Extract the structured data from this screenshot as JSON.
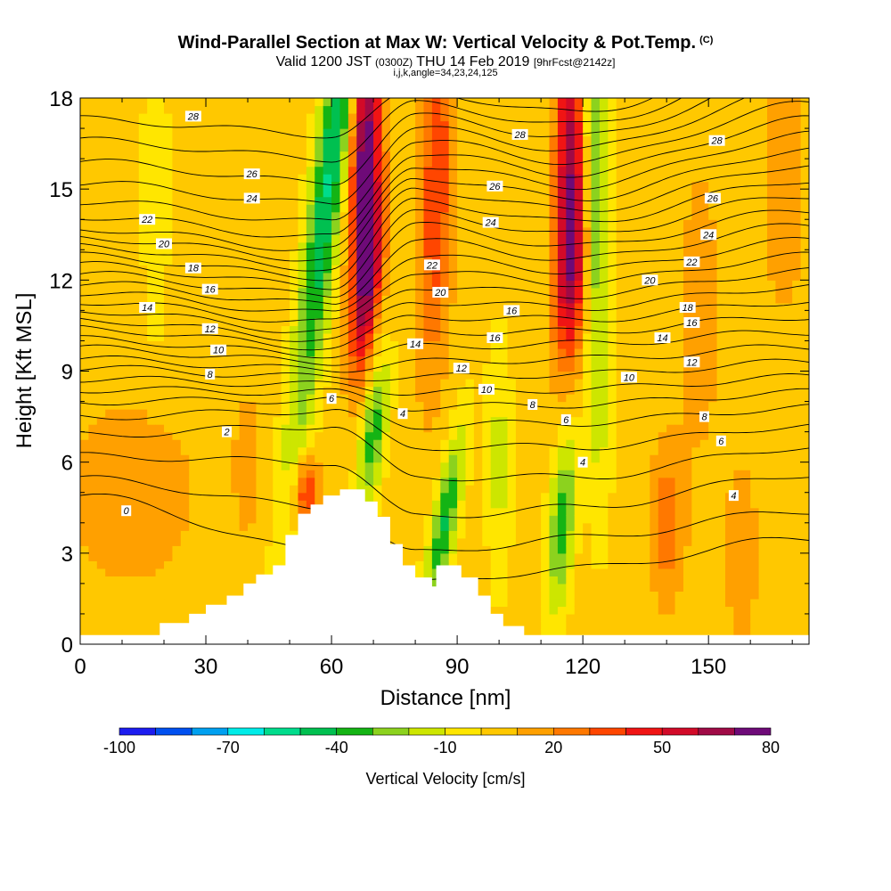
{
  "titles": {
    "main": "Wind-Parallel Section at Max W: Vertical Velocity & Pot.Temp.",
    "main_mark": "(C)",
    "valid_prefix": "Valid 1200 JST",
    "valid_z": "(0300Z)",
    "valid_date": "THU 14 Feb 2019",
    "valid_fcst": "[9hrFcst@2142z]",
    "indices": "i,j,k,angle=34,23,24,125"
  },
  "colors": {
    "background_fill": "#ffe600",
    "contour_line": "#000000",
    "terrain": "#ffffff"
  },
  "chart_data": {
    "type": "heatmap",
    "xlabel": "Distance [nm]",
    "ylabel": "Height [Kft MSL]",
    "xlim": [
      0,
      174
    ],
    "ylim": [
      0,
      18
    ],
    "x_ticks": [
      0,
      30,
      60,
      90,
      120,
      150
    ],
    "y_ticks": [
      0,
      3,
      6,
      9,
      12,
      15,
      18
    ],
    "colorbar": {
      "label": "Vertical Velocity [cm/s]",
      "levels": [
        -100,
        -90,
        -80,
        -70,
        -60,
        -50,
        -40,
        -30,
        -20,
        -10,
        0,
        10,
        20,
        30,
        40,
        50,
        60,
        70,
        80
      ],
      "tick_labels": [
        "-100",
        "-70",
        "-40",
        "-10",
        "20",
        "50",
        "80"
      ],
      "tick_values": [
        -100,
        -70,
        -40,
        -10,
        20,
        50,
        80
      ],
      "colors": [
        "#1c1cf0",
        "#0050f0",
        "#00a0f0",
        "#00ece8",
        "#00dc8c",
        "#00c050",
        "#14b414",
        "#8cd21e",
        "#cde600",
        "#ffe600",
        "#ffc800",
        "#ffa000",
        "#ff7800",
        "#ff4600",
        "#f01414",
        "#d20a28",
        "#a00a46",
        "#6e0a78"
      ]
    },
    "terrain_profile": [
      [
        0,
        0.3
      ],
      [
        19,
        0.3
      ],
      [
        19,
        0.7
      ],
      [
        26,
        0.7
      ],
      [
        26,
        1.0
      ],
      [
        30,
        1.0
      ],
      [
        30,
        1.3
      ],
      [
        35,
        1.3
      ],
      [
        35,
        1.6
      ],
      [
        39,
        1.6
      ],
      [
        39,
        2.0
      ],
      [
        42,
        2.0
      ],
      [
        42,
        2.3
      ],
      [
        46,
        2.3
      ],
      [
        46,
        2.6
      ],
      [
        49,
        2.6
      ],
      [
        49,
        3.6
      ],
      [
        52,
        3.6
      ],
      [
        52,
        4.3
      ],
      [
        55,
        4.3
      ],
      [
        55,
        4.6
      ],
      [
        58,
        4.6
      ],
      [
        58,
        4.9
      ],
      [
        62,
        4.9
      ],
      [
        62,
        5.1
      ],
      [
        68,
        5.1
      ],
      [
        68,
        4.7
      ],
      [
        71,
        4.7
      ],
      [
        71,
        4.2
      ],
      [
        74,
        4.2
      ],
      [
        74,
        3.3
      ],
      [
        77,
        3.3
      ],
      [
        77,
        2.6
      ],
      [
        80,
        2.6
      ],
      [
        80,
        2.2
      ],
      [
        84,
        2.2
      ],
      [
        84,
        1.9
      ],
      [
        85,
        1.9
      ],
      [
        85,
        2.6
      ],
      [
        91,
        2.6
      ],
      [
        91,
        2.2
      ],
      [
        95,
        2.2
      ],
      [
        95,
        1.6
      ],
      [
        98,
        1.6
      ],
      [
        98,
        1.0
      ],
      [
        101,
        1.0
      ],
      [
        101,
        0.6
      ],
      [
        106,
        0.6
      ],
      [
        106,
        0.3
      ],
      [
        174,
        0.3
      ]
    ],
    "w_features": [
      {
        "x": 60,
        "z": 16,
        "sx": 4,
        "sz": 10,
        "w": -55,
        "tilt": 0.9
      },
      {
        "x": 68,
        "z": 16,
        "sx": 3.5,
        "sz": 5,
        "w": 75,
        "tilt": 0.2
      },
      {
        "x": 69,
        "z": 12,
        "sx": 3,
        "sz": 3,
        "w": 45,
        "tilt": 0.8
      },
      {
        "x": 85,
        "z": 15,
        "sx": 4,
        "sz": 6,
        "w": 35,
        "tilt": 0.2
      },
      {
        "x": 87,
        "z": 4,
        "sx": 3,
        "sz": 3,
        "w": -45,
        "tilt": 1.2
      },
      {
        "x": 70,
        "z": 7,
        "sx": 3,
        "sz": 2.5,
        "w": -40,
        "tilt": 0.8
      },
      {
        "x": 54,
        "z": 5,
        "sx": 3,
        "sz": 1.2,
        "w": 40,
        "tilt": 0
      },
      {
        "x": 117,
        "z": 16,
        "sx": 3.5,
        "sz": 5,
        "w": 60,
        "tilt": 0
      },
      {
        "x": 117,
        "z": 12,
        "sx": 4,
        "sz": 3,
        "w": 35,
        "tilt": 0.5
      },
      {
        "x": 123,
        "z": 16,
        "sx": 3,
        "sz": 6,
        "w": -35,
        "tilt": 0
      },
      {
        "x": 115,
        "z": 4,
        "sx": 3,
        "sz": 3,
        "w": -40,
        "tilt": 0.5
      },
      {
        "x": 124,
        "z": 8,
        "sx": 3,
        "sz": 5,
        "w": -15,
        "tilt": 0
      },
      {
        "x": 100,
        "z": 6,
        "sx": 3,
        "sz": 4,
        "w": -18,
        "tilt": 0
      },
      {
        "x": 18,
        "z": 15,
        "sx": 3,
        "sz": 5,
        "w": -14,
        "tilt": 0
      },
      {
        "x": 12,
        "z": 5,
        "sx": 15,
        "sz": 3,
        "w": 15,
        "tilt": 0
      },
      {
        "x": 140,
        "z": 4,
        "sx": 4,
        "sz": 2.5,
        "w": 24,
        "tilt": 0
      },
      {
        "x": 158,
        "z": 3,
        "sx": 4,
        "sz": 3,
        "w": 14,
        "tilt": 0
      },
      {
        "x": 168,
        "z": 16,
        "sx": 5,
        "sz": 5,
        "w": 16,
        "tilt": 0
      },
      {
        "x": 40,
        "z": 6,
        "sx": 4,
        "sz": 3,
        "w": 10,
        "tilt": 0
      },
      {
        "x": 148,
        "z": 11,
        "sx": 6,
        "sz": 6,
        "w": 10,
        "tilt": 0
      }
    ],
    "theta_levels": [
      0,
      1,
      2,
      3,
      4,
      5,
      6,
      7,
      8,
      9,
      10,
      11,
      12,
      13,
      14,
      15,
      16,
      17,
      18,
      19,
      20,
      21,
      22,
      23,
      24,
      25,
      26,
      27,
      28,
      29
    ],
    "theta_ref_heights": [
      {
        "x": 0,
        "z": [
          4.9,
          5.45,
          6.2,
          6.9,
          7.5,
          8.0,
          8.4,
          8.75,
          9.1,
          9.4,
          9.75,
          10.05,
          10.4,
          10.7,
          11.0,
          11.3,
          11.6,
          11.9,
          12.2,
          12.5,
          12.8,
          13.1,
          13.4,
          13.7,
          14.1,
          14.6,
          15.2,
          15.9,
          16.6,
          17.3
        ]
      },
      {
        "x": 60,
        "z": [
          3.0,
          4.5,
          6.0,
          7.2,
          7.7,
          8.05,
          8.3,
          8.55,
          8.8,
          9.05,
          9.3,
          9.55,
          9.8,
          10.05,
          10.3,
          10.6,
          10.9,
          11.2,
          11.5,
          11.8,
          12.1,
          12.4,
          12.7,
          13.0,
          13.4,
          13.9,
          14.5,
          15.2,
          16.0,
          16.8
        ]
      },
      {
        "x": 80,
        "z": [
          2.0,
          3.0,
          4.2,
          5.5,
          6.5,
          7.2,
          7.8,
          8.3,
          8.8,
          9.3,
          9.8,
          10.3,
          10.8,
          11.3,
          11.8,
          12.3,
          12.8,
          13.3,
          13.8,
          14.2,
          14.6,
          15.0,
          15.4,
          15.8,
          16.2,
          16.6,
          17.0,
          17.4,
          17.8,
          18.2
        ]
      },
      {
        "x": 118,
        "z": [
          2.5,
          3.5,
          4.5,
          5.5,
          6.5,
          7.3,
          7.9,
          8.4,
          8.9,
          9.4,
          9.9,
          10.3,
          10.7,
          11.1,
          11.5,
          11.9,
          12.3,
          12.7,
          13.1,
          13.5,
          13.9,
          14.3,
          14.7,
          15.1,
          15.5,
          15.9,
          16.3,
          16.7,
          17.1,
          17.5
        ]
      },
      {
        "x": 174,
        "z": [
          3.5,
          4.4,
          5.6,
          6.5,
          7.2,
          7.8,
          8.3,
          8.8,
          9.3,
          9.8,
          10.3,
          10.8,
          11.3,
          11.8,
          12.3,
          12.8,
          13.3,
          13.8,
          14.3,
          14.8,
          15.3,
          15.8,
          16.3,
          16.8,
          17.3,
          17.8,
          18.3,
          18.8,
          19.3,
          19.8
        ]
      }
    ],
    "contour_labels": [
      {
        "text": "28",
        "x": 27,
        "z": 17.4
      },
      {
        "text": "26",
        "x": 41,
        "z": 15.5
      },
      {
        "text": "24",
        "x": 41,
        "z": 14.7
      },
      {
        "text": "22",
        "x": 16,
        "z": 14.0
      },
      {
        "text": "20",
        "x": 20,
        "z": 13.2
      },
      {
        "text": "18",
        "x": 27,
        "z": 12.4
      },
      {
        "text": "16",
        "x": 31,
        "z": 11.7
      },
      {
        "text": "14",
        "x": 16,
        "z": 11.1
      },
      {
        "text": "12",
        "x": 31,
        "z": 10.4
      },
      {
        "text": "10",
        "x": 33,
        "z": 9.7
      },
      {
        "text": "8",
        "x": 31,
        "z": 8.9
      },
      {
        "text": "6",
        "x": 60,
        "z": 8.1
      },
      {
        "text": "4",
        "x": 77,
        "z": 7.6
      },
      {
        "text": "2",
        "x": 35,
        "z": 7.0
      },
      {
        "text": "0",
        "x": 11,
        "z": 4.4
      },
      {
        "text": "28",
        "x": 105,
        "z": 16.8
      },
      {
        "text": "26",
        "x": 99,
        "z": 15.1
      },
      {
        "text": "24",
        "x": 98,
        "z": 13.9
      },
      {
        "text": "22",
        "x": 84,
        "z": 12.5
      },
      {
        "text": "20",
        "x": 86,
        "z": 11.6
      },
      {
        "text": "14",
        "x": 80,
        "z": 9.9
      },
      {
        "text": "12",
        "x": 91,
        "z": 9.1
      },
      {
        "text": "10",
        "x": 97,
        "z": 8.4
      },
      {
        "text": "16",
        "x": 103,
        "z": 11.0
      },
      {
        "text": "16",
        "x": 99,
        "z": 10.1
      },
      {
        "text": "8",
        "x": 108,
        "z": 7.9
      },
      {
        "text": "6",
        "x": 116,
        "z": 7.4
      },
      {
        "text": "4",
        "x": 120,
        "z": 6.0
      },
      {
        "text": "28",
        "x": 152,
        "z": 16.6
      },
      {
        "text": "26",
        "x": 151,
        "z": 14.7
      },
      {
        "text": "24",
        "x": 150,
        "z": 13.5
      },
      {
        "text": "22",
        "x": 146,
        "z": 12.6
      },
      {
        "text": "20",
        "x": 136,
        "z": 12.0
      },
      {
        "text": "18",
        "x": 145,
        "z": 11.1
      },
      {
        "text": "16",
        "x": 146,
        "z": 10.6
      },
      {
        "text": "14",
        "x": 139,
        "z": 10.1
      },
      {
        "text": "12",
        "x": 146,
        "z": 9.3
      },
      {
        "text": "10",
        "x": 131,
        "z": 8.8
      },
      {
        "text": "8",
        "x": 149,
        "z": 7.5
      },
      {
        "text": "6",
        "x": 153,
        "z": 6.7
      },
      {
        "text": "4",
        "x": 156,
        "z": 4.9
      }
    ]
  }
}
